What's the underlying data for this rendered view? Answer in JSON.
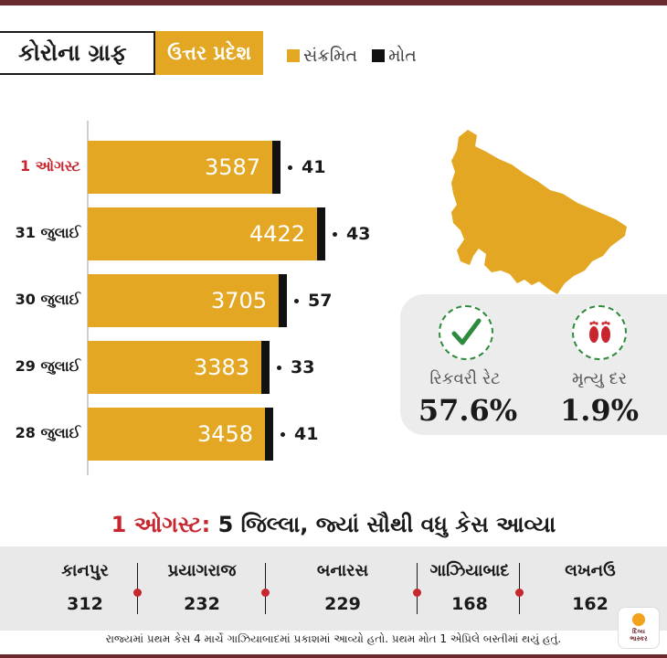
{
  "header": {
    "title": "કોરોના ગ્રાફ",
    "state": "ઉત્તર પ્રદેશ"
  },
  "legend": {
    "infected": "સંક્રમિત",
    "deaths": "મોત"
  },
  "colors": {
    "infected": "#e3a723",
    "deaths": "#111111",
    "highlight": "#c8262e",
    "border": "#6b2a2e"
  },
  "chart_data": {
    "type": "bar",
    "orientation": "horizontal",
    "categories": [
      "1 ઓગસ્ટ",
      "31 જુલાઈ",
      "30 જુલાઈ",
      "29 જુલાઈ",
      "28 જુલાઈ"
    ],
    "highlight_category": "1 ઓગસ્ટ",
    "series": [
      {
        "name": "સંક્રમિત",
        "values": [
          3587,
          4422,
          3705,
          3383,
          3458
        ]
      },
      {
        "name": "મોત",
        "values": [
          41,
          43,
          57,
          33,
          41
        ]
      }
    ],
    "xlim": [
      0,
      4422
    ],
    "grid": false,
    "legend_position": "top"
  },
  "stats": {
    "recovery_label": "રિકવરી રેટ",
    "recovery_value": "57.6%",
    "death_label": "મૃત્યુ દર",
    "death_value": "1.9%"
  },
  "districts": {
    "title_date": "1 ઓગસ્ટ:",
    "title_rest": "5 જિલ્લા, જ્યાં સૌથી વધુ કેસ આવ્યા",
    "items": [
      {
        "name": "કાનપુર",
        "value": "312"
      },
      {
        "name": "પ્રયાગરાજ",
        "value": "232"
      },
      {
        "name": "બનારસ",
        "value": "229"
      },
      {
        "name": "ગાઝિયાબાદ",
        "value": "168"
      },
      {
        "name": "લખનઉ",
        "value": "162"
      }
    ]
  },
  "footnote": "રાજ્યમાં પ્રથમ કેસ 4 માર્ચે ગાઝિયાબાદમાં પ્રકાશમાં આવ્યો હતો. પ્રથમ મોત 1 એપ્રિલે બસ્તીમાં થયું હતું.",
  "logo": {
    "line1": "દિવ્ય",
    "line2": "ભાસ્કર"
  }
}
